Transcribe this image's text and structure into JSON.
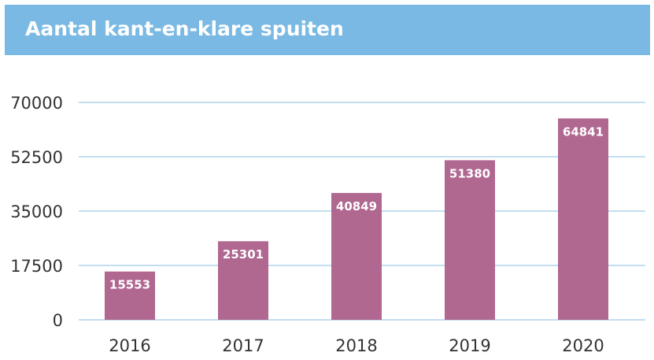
{
  "chart_data": {
    "type": "bar",
    "title": "Aantal kant-en-klare spuiten",
    "xlabel": "",
    "ylabel": "",
    "categories": [
      "2016",
      "2017",
      "2018",
      "2019",
      "2020"
    ],
    "values": [
      15553,
      25301,
      40849,
      51380,
      64841
    ],
    "ylim": [
      0,
      70000
    ],
    "yticks": [
      "0",
      "17500",
      "35000",
      "52500",
      "70000"
    ],
    "grid": true,
    "legend": "none",
    "colors": {
      "bar": "#b06790",
      "title_bg": "#7ab9e3",
      "gridline": "#9fc9e6",
      "axis_text": "#333333",
      "bar_label": "#ffffff"
    }
  }
}
